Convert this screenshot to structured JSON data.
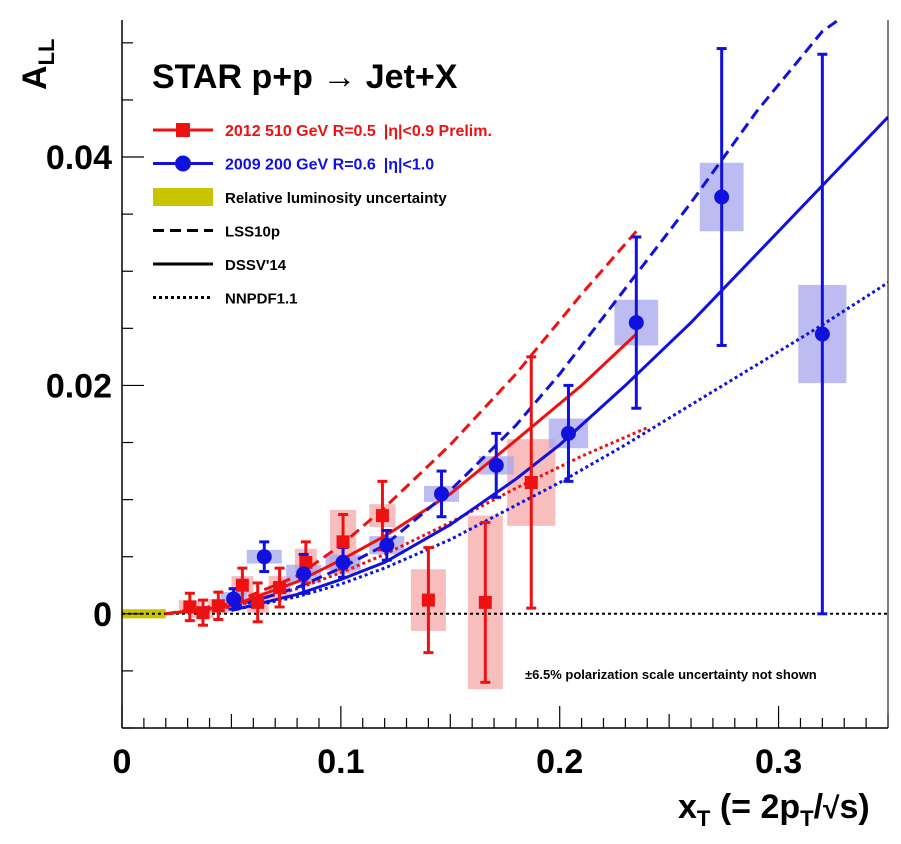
{
  "chart_data": {
    "type": "scatter",
    "title": "STAR p+p → Jet+X",
    "ylabel": "A",
    "ylabel_sub": "LL",
    "xlabel_parts": {
      "x": "x",
      "x_sub": "T",
      "a": "(= 2p",
      "a_sub": "T",
      "b": "/",
      "c": "s)"
    },
    "xlim": [
      0,
      0.35
    ],
    "ylim": [
      -0.01,
      0.052
    ],
    "x_ticks": [
      {
        "v": 0,
        "label": "0"
      },
      {
        "v": 0.1,
        "label": "0.1"
      },
      {
        "v": 0.2,
        "label": "0.2"
      },
      {
        "v": 0.3,
        "label": "0.3"
      }
    ],
    "y_ticks": [
      {
        "v": 0,
        "label": "0"
      },
      {
        "v": 0.02,
        "label": "0.02"
      },
      {
        "v": 0.04,
        "label": "0.04"
      }
    ],
    "annotation": "±6.5% polarization scale uncertainty not shown",
    "colors": {
      "red": "#ee1111",
      "blue": "#1111dd",
      "red_box": "#f6a8a8",
      "blue_box": "#a6a6ee",
      "lumi": "#c8c400"
    },
    "legend": [
      {
        "label": "2012 510 GeV R=0.5",
        "eta": "|η|<0.9 Prelim.",
        "color": "#ee1111",
        "kind": "marker-square"
      },
      {
        "label": "2009 200 GeV R=0.6",
        "eta": "|η|<1.0",
        "color": "#1111dd",
        "kind": "marker-circle"
      },
      {
        "label": "Relative luminosity uncertainty",
        "color": "#c8c400",
        "kind": "box"
      },
      {
        "label": "LSS10p",
        "color": "#000000",
        "kind": "dashed"
      },
      {
        "label": "DSSV'14",
        "color": "#000000",
        "kind": "solid"
      },
      {
        "label": "NNPDF1.1",
        "color": "#000000",
        "kind": "dotted"
      }
    ],
    "lumi_band": {
      "x": [
        0,
        0.02
      ],
      "y": [
        -0.0004,
        0.0004
      ]
    },
    "series": [
      {
        "name": "2012 510 GeV R=0.5 |η|<0.9 Prelim.",
        "marker": "square",
        "color": "#ee1111",
        "points": [
          {
            "x": 0.031,
            "y": 0.0006,
            "err": 0.0012,
            "sx": 0.005,
            "sy": 0.0006
          },
          {
            "x": 0.037,
            "y": 0.0001,
            "err": 0.0011,
            "sx": 0.005,
            "sy": 0.0005
          },
          {
            "x": 0.044,
            "y": 0.0007,
            "err": 0.0012,
            "sx": 0.005,
            "sy": 0.0006
          },
          {
            "x": 0.055,
            "y": 0.0025,
            "err": 0.0015,
            "sx": 0.005,
            "sy": 0.0008
          },
          {
            "x": 0.062,
            "y": 0.001,
            "err": 0.0017,
            "sx": 0.005,
            "sy": 0.0009
          },
          {
            "x": 0.072,
            "y": 0.0023,
            "err": 0.0017,
            "sx": 0.005,
            "sy": 0.001
          },
          {
            "x": 0.084,
            "y": 0.0045,
            "err": 0.0018,
            "sx": 0.005,
            "sy": 0.0012
          },
          {
            "x": 0.101,
            "y": 0.0063,
            "err": 0.0024,
            "sx": 0.006,
            "sy": 0.0028
          },
          {
            "x": 0.119,
            "y": 0.0086,
            "err": 0.003,
            "sx": 0.006,
            "sy": 0.001
          },
          {
            "x": 0.14,
            "y": 0.0012,
            "err": 0.0046,
            "sx": 0.008,
            "sy": 0.0027
          },
          {
            "x": 0.166,
            "y": 0.001,
            "err": 0.007,
            "sx": 0.008,
            "sy": 0.0076
          },
          {
            "x": 0.187,
            "y": 0.0115,
            "err": 0.011,
            "sx": 0.011,
            "sy": 0.0038
          }
        ]
      },
      {
        "name": "2009 200 GeV R=0.6 |η|<1.0",
        "marker": "circle",
        "color": "#1111dd",
        "points": [
          {
            "x": 0.051,
            "y": 0.0013,
            "err": 0.0009,
            "sx": 0.006,
            "sy": 0.0006
          },
          {
            "x": 0.065,
            "y": 0.005,
            "err": 0.0013,
            "sx": 0.008,
            "sy": 0.0006
          },
          {
            "x": 0.083,
            "y": 0.0035,
            "err": 0.0017,
            "sx": 0.008,
            "sy": 0.0008
          },
          {
            "x": 0.101,
            "y": 0.0045,
            "err": 0.0013,
            "sx": 0.008,
            "sy": 0.0007
          },
          {
            "x": 0.121,
            "y": 0.006,
            "err": 0.0013,
            "sx": 0.008,
            "sy": 0.0008
          },
          {
            "x": 0.146,
            "y": 0.0105,
            "err": 0.002,
            "sx": 0.008,
            "sy": 0.0007
          },
          {
            "x": 0.171,
            "y": 0.013,
            "err": 0.0028,
            "sx": 0.008,
            "sy": 0.0008
          },
          {
            "x": 0.204,
            "y": 0.0158,
            "err": 0.0042,
            "sx": 0.009,
            "sy": 0.0013
          },
          {
            "x": 0.235,
            "y": 0.0255,
            "err": 0.0075,
            "sx": 0.01,
            "sy": 0.002
          },
          {
            "x": 0.274,
            "y": 0.0365,
            "err": 0.013,
            "sx": 0.01,
            "sy": 0.003
          },
          {
            "x": 0.32,
            "y": 0.0245,
            "err": 0.0245,
            "sx": 0.011,
            "sy": 0.0043
          }
        ]
      }
    ],
    "curves": [
      {
        "name": "LSS10p (510 GeV)",
        "color": "#ee1111",
        "style": "dashed",
        "x": [
          0.02,
          0.05,
          0.08,
          0.1,
          0.12,
          0.15,
          0.18,
          0.21,
          0.235
        ],
        "y": [
          0.0,
          0.0009,
          0.0033,
          0.006,
          0.0093,
          0.0148,
          0.021,
          0.028,
          0.0335
        ]
      },
      {
        "name": "DSSV'14 (510 GeV)",
        "color": "#ee1111",
        "style": "solid",
        "x": [
          0.02,
          0.05,
          0.08,
          0.1,
          0.12,
          0.15,
          0.18,
          0.21,
          0.235
        ],
        "y": [
          0.0,
          0.0007,
          0.0028,
          0.0047,
          0.0068,
          0.0105,
          0.0152,
          0.02,
          0.0245
        ]
      },
      {
        "name": "NNPDF1.1 (510 GeV)",
        "color": "#ee1111",
        "style": "dotted",
        "x": [
          0.02,
          0.05,
          0.08,
          0.1,
          0.12,
          0.15,
          0.18,
          0.21,
          0.24
        ],
        "y": [
          0.0,
          0.0006,
          0.0022,
          0.0036,
          0.0052,
          0.008,
          0.011,
          0.0138,
          0.0163
        ]
      },
      {
        "name": "LSS10p (200 GeV)",
        "color": "#1111dd",
        "style": "dashed",
        "x": [
          0.05,
          0.08,
          0.1,
          0.12,
          0.15,
          0.18,
          0.2,
          0.23,
          0.26,
          0.29,
          0.32,
          0.331
        ],
        "y": [
          0.0005,
          0.0023,
          0.004,
          0.006,
          0.0108,
          0.0165,
          0.021,
          0.0285,
          0.036,
          0.044,
          0.051,
          0.0525
        ]
      },
      {
        "name": "DSSV'14 (200 GeV)",
        "color": "#1111dd",
        "style": "solid",
        "x": [
          0.05,
          0.08,
          0.1,
          0.12,
          0.15,
          0.18,
          0.2,
          0.23,
          0.26,
          0.29,
          0.32,
          0.35
        ],
        "y": [
          0.0003,
          0.0017,
          0.003,
          0.0045,
          0.0078,
          0.0118,
          0.0148,
          0.02,
          0.0255,
          0.0315,
          0.0375,
          0.0435
        ]
      },
      {
        "name": "NNPDF1.1 (200 GeV)",
        "color": "#1111dd",
        "style": "dotted",
        "x": [
          0.05,
          0.08,
          0.1,
          0.12,
          0.15,
          0.18,
          0.2,
          0.23,
          0.26,
          0.29,
          0.32,
          0.35
        ],
        "y": [
          0.0003,
          0.0015,
          0.0026,
          0.004,
          0.0065,
          0.0095,
          0.0115,
          0.0148,
          0.0183,
          0.0218,
          0.0253,
          0.029
        ]
      }
    ]
  }
}
